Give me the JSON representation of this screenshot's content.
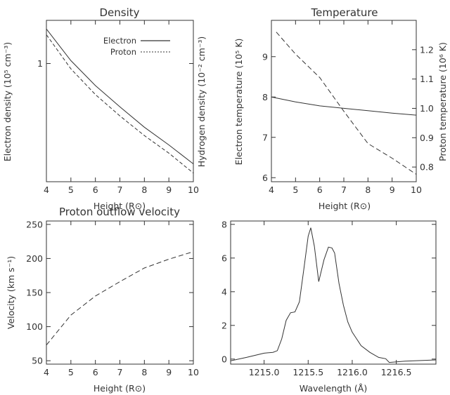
{
  "chart_data": [
    {
      "id": "density",
      "type": "line",
      "title": "Density",
      "xlabel": "Height (R⊙)",
      "ylabel": "Electron density (10⁵ cm⁻³)",
      "ylabel_right": "Hydrogen density (10⁻² cm⁻³)",
      "xlim": [
        4,
        10
      ],
      "ylim": [
        0.2,
        1.8
      ],
      "y_scale": "log",
      "xticks": [
        4,
        5,
        6,
        7,
        8,
        9,
        10
      ],
      "yticks": [
        {
          "v": 1,
          "label": "1"
        }
      ],
      "legend": {
        "placement": "top-right",
        "entries": [
          "Electron",
          "Proton"
        ]
      },
      "series": [
        {
          "name": "Electron",
          "dash": "solid",
          "axis": "left",
          "x": [
            4,
            5,
            6,
            7,
            8,
            9,
            10
          ],
          "y": [
            1.6,
            1.04,
            0.74,
            0.555,
            0.42,
            0.33,
            0.255
          ]
        },
        {
          "name": "Proton",
          "dash": "dashed",
          "axis": "left",
          "x": [
            4,
            5,
            6,
            7,
            8,
            9,
            10
          ],
          "y": [
            1.48,
            0.93,
            0.655,
            0.49,
            0.375,
            0.295,
            0.225
          ]
        }
      ]
    },
    {
      "id": "temperature",
      "type": "line",
      "title": "Temperature",
      "xlabel": "Height (R⊙)",
      "ylabel": "Electron temperature (10⁵ K)",
      "ylabel_right": "Proton temperature (10⁶ K)",
      "xlim": [
        4,
        10
      ],
      "ylim": [
        5.9,
        9.9
      ],
      "ylim_right": [
        0.75,
        1.3
      ],
      "xticks": [
        4,
        5,
        6,
        7,
        8,
        9,
        10
      ],
      "yticks": [
        6,
        7,
        8,
        9
      ],
      "yticks_right": [
        0.8,
        0.9,
        1.0,
        1.1,
        1.2
      ],
      "series": [
        {
          "dash": "solid",
          "axis": "left",
          "x": [
            4,
            5,
            6,
            7,
            8,
            9,
            10
          ],
          "y": [
            8.0,
            7.88,
            7.78,
            7.72,
            7.66,
            7.6,
            7.55
          ]
        },
        {
          "dash": "dashed",
          "axis": "right",
          "x": [
            4.2,
            5,
            6,
            7,
            8,
            9,
            10
          ],
          "y": [
            1.26,
            1.185,
            1.105,
            0.99,
            0.88,
            0.83,
            0.775
          ]
        }
      ]
    },
    {
      "id": "velocity",
      "type": "line",
      "title": "Proton outflow velocity",
      "xlabel": "Height (R⊙)",
      "ylabel": "Velocity (km s⁻¹)",
      "xlim": [
        4,
        10
      ],
      "ylim": [
        45,
        255
      ],
      "xticks": [
        4,
        5,
        6,
        7,
        8,
        9,
        10
      ],
      "yticks": [
        50,
        100,
        150,
        200,
        250
      ],
      "series": [
        {
          "dash": "dashed",
          "axis": "left",
          "x": [
            4,
            5,
            6,
            7,
            8,
            9,
            10
          ],
          "y": [
            73,
            117,
            145,
            166,
            186,
            199,
            210
          ]
        }
      ]
    },
    {
      "id": "spectrum",
      "type": "line",
      "title": "",
      "xlabel": "Wavelength (Å)",
      "ylabel": "",
      "xlim": [
        1214.62,
        1216.95
      ],
      "ylim": [
        -0.3,
        8.2
      ],
      "xticks": [
        1215.0,
        1215.5,
        1216.0,
        1216.5
      ],
      "xtick_labels": [
        "1215.0",
        "1215.5",
        "1216.0",
        "1216.5"
      ],
      "yticks": [
        0,
        2,
        4,
        6,
        8
      ],
      "series": [
        {
          "dash": "solid",
          "axis": "left",
          "x": [
            1214.62,
            1214.8,
            1215.0,
            1215.1,
            1215.15,
            1215.2,
            1215.25,
            1215.3,
            1215.35,
            1215.4,
            1215.45,
            1215.5,
            1215.53,
            1215.57,
            1215.62,
            1215.68,
            1215.73,
            1215.77,
            1215.8,
            1215.85,
            1215.9,
            1215.95,
            1216.0,
            1216.1,
            1216.2,
            1216.3,
            1216.38,
            1216.42,
            1216.6,
            1216.95
          ],
          "y": [
            -0.1,
            0.1,
            0.35,
            0.4,
            0.5,
            1.2,
            2.3,
            2.75,
            2.8,
            3.4,
            5.3,
            7.3,
            7.8,
            6.7,
            4.6,
            5.9,
            6.65,
            6.6,
            6.3,
            4.5,
            3.2,
            2.2,
            1.6,
            0.8,
            0.4,
            0.1,
            0.02,
            -0.2,
            -0.12,
            -0.05
          ]
        }
      ]
    }
  ]
}
